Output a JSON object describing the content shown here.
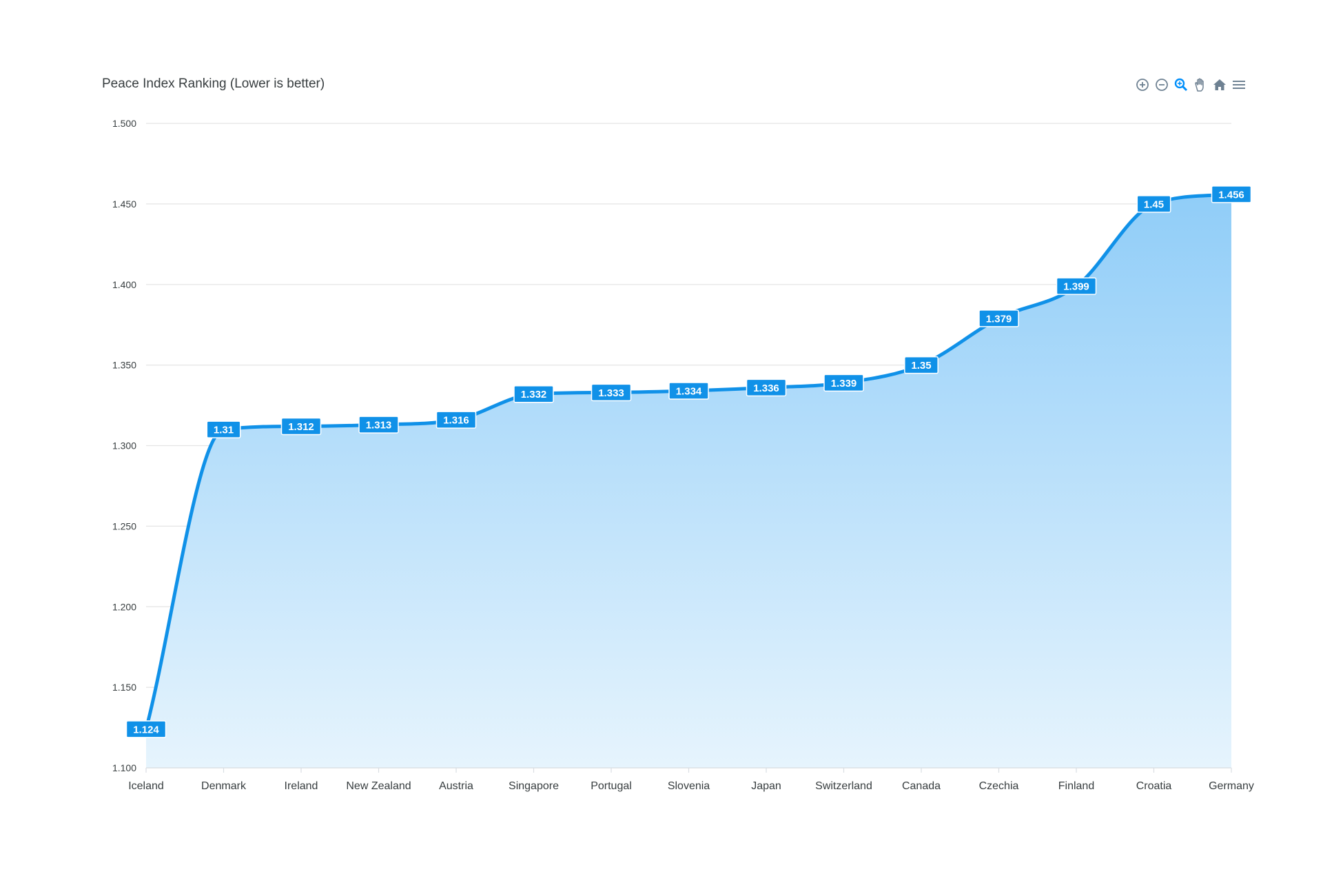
{
  "chart_data": {
    "type": "area",
    "title": "Peace Index Ranking (Lower is better)",
    "xlabel": "",
    "ylabel": "",
    "categories": [
      "Iceland",
      "Denmark",
      "Ireland",
      "New Zealand",
      "Austria",
      "Singapore",
      "Portugal",
      "Slovenia",
      "Japan",
      "Switzerland",
      "Canada",
      "Czechia",
      "Finland",
      "Croatia",
      "Germany"
    ],
    "values": [
      1.124,
      1.31,
      1.312,
      1.313,
      1.316,
      1.332,
      1.333,
      1.334,
      1.336,
      1.339,
      1.35,
      1.379,
      1.399,
      1.45,
      1.456
    ],
    "data_labels": [
      "1.124",
      "1.31",
      "1.312",
      "1.313",
      "1.316",
      "1.332",
      "1.333",
      "1.334",
      "1.336",
      "1.339",
      "1.35",
      "1.379",
      "1.399",
      "1.45",
      "1.456"
    ],
    "ylim": [
      1.1,
      1.5
    ],
    "yticks": [
      "1.100",
      "1.150",
      "1.200",
      "1.250",
      "1.300",
      "1.350",
      "1.400",
      "1.450",
      "1.500"
    ],
    "grid": true,
    "curve": "smooth",
    "colors": {
      "line": "#1091e8",
      "fill_top": "#90cdf8",
      "fill_bottom": "#e6f4fd",
      "label_bg": "#1091e8",
      "grid": "#e4e4e4"
    }
  },
  "toolbar": {
    "icons": [
      "zoom-in-icon",
      "zoom-out-icon",
      "selection-zoom-icon",
      "pan-hand-icon",
      "home-reset-icon",
      "menu-icon"
    ],
    "colors": {
      "default": "#6e8192",
      "active": "#008ffb"
    }
  }
}
